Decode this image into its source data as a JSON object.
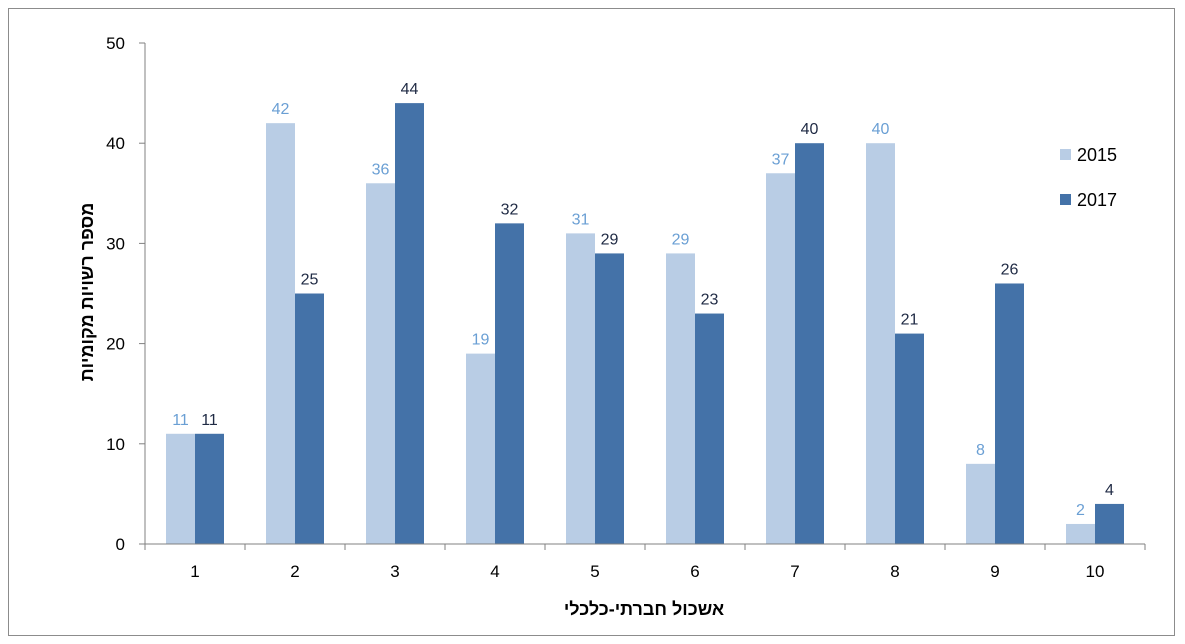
{
  "chart_data": {
    "type": "bar",
    "title": "",
    "xlabel": "אשכול חברתי-כלכלי",
    "ylabel": "מספר רשויות מקומיות",
    "categories": [
      "1",
      "2",
      "3",
      "4",
      "5",
      "6",
      "7",
      "8",
      "9",
      "10"
    ],
    "ylim": [
      0,
      50
    ],
    "yticks": [
      0,
      10,
      20,
      30,
      40,
      50
    ],
    "grid": false,
    "legend_position": "right",
    "series": [
      {
        "name": "2015",
        "color": "#b9cde5",
        "label_color": "#6a9fd4",
        "values": [
          11,
          42,
          36,
          19,
          31,
          29,
          37,
          40,
          8,
          2
        ]
      },
      {
        "name": "2017",
        "color": "#4472a8",
        "label_color": "#1f2a44",
        "values": [
          11,
          25,
          44,
          32,
          29,
          23,
          40,
          21,
          26,
          4
        ]
      }
    ]
  }
}
